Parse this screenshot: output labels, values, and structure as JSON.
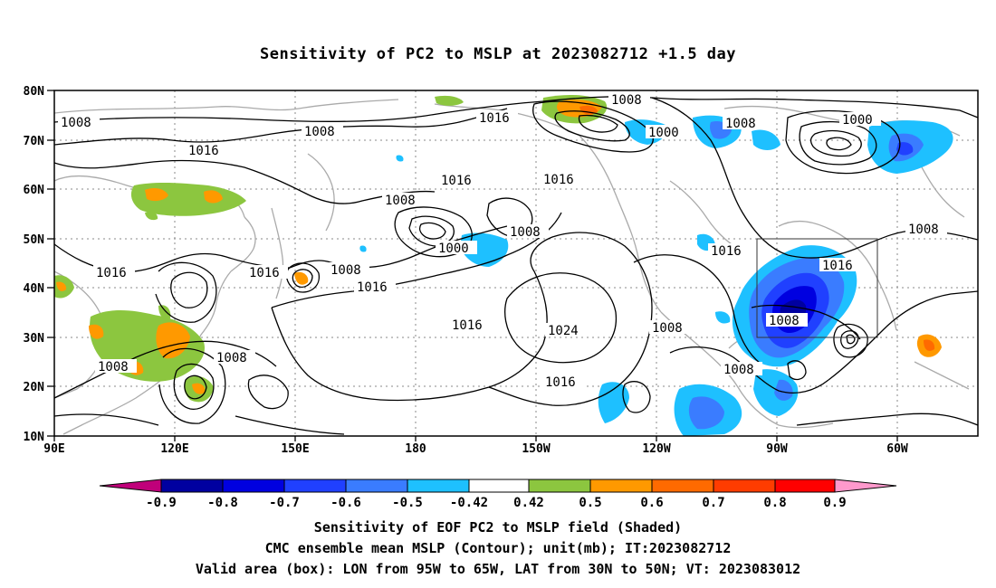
{
  "title": "Sensitivity of PC2 to MSLP at 2023082712 +1.5 day",
  "lat_labels": [
    "80N",
    "70N",
    "60N",
    "50N",
    "40N",
    "30N",
    "20N",
    "10N"
  ],
  "lon_labels": [
    "90E",
    "120E",
    "150E",
    "180",
    "150W",
    "120W",
    "90W",
    "60W"
  ],
  "contour_labels": [
    "1008",
    "1008",
    "1016",
    "1016",
    "1008",
    "1016",
    "1016",
    "1000",
    "1008",
    "1000",
    "1008",
    "1016",
    "1008",
    "1000",
    "1008",
    "1016",
    "1016",
    "1008",
    "1016",
    "1016",
    "1016",
    "1024",
    "1008",
    "1008",
    "1008",
    "1016",
    "1008",
    "1008",
    "1016"
  ],
  "colorbar": {
    "labels": [
      "-0.9",
      "-0.8",
      "-0.7",
      "-0.6",
      "-0.5",
      "-0.42",
      "0.42",
      "0.5",
      "0.6",
      "0.7",
      "0.8",
      "0.9"
    ],
    "colors": [
      "#0000a0",
      "#0000e0",
      "#2040ff",
      "#3a7cff",
      "#1ec0ff",
      "#ffffff",
      "#8cc63f",
      "#ff9900",
      "#ff6a00",
      "#ff3c00",
      "#ff0000"
    ],
    "low_end_color": "#c0007a",
    "high_end_color": "#ff99cc"
  },
  "captions": {
    "line1": "Sensitivity of EOF PC2 to MSLP field (Shaded)",
    "line2": "CMC ensemble mean MSLP (Contour); unit(mb); IT:2023082712",
    "line3": "Valid area (box): LON from 95W to 65W, LAT from 30N to 50N; VT: 2023083012"
  }
}
